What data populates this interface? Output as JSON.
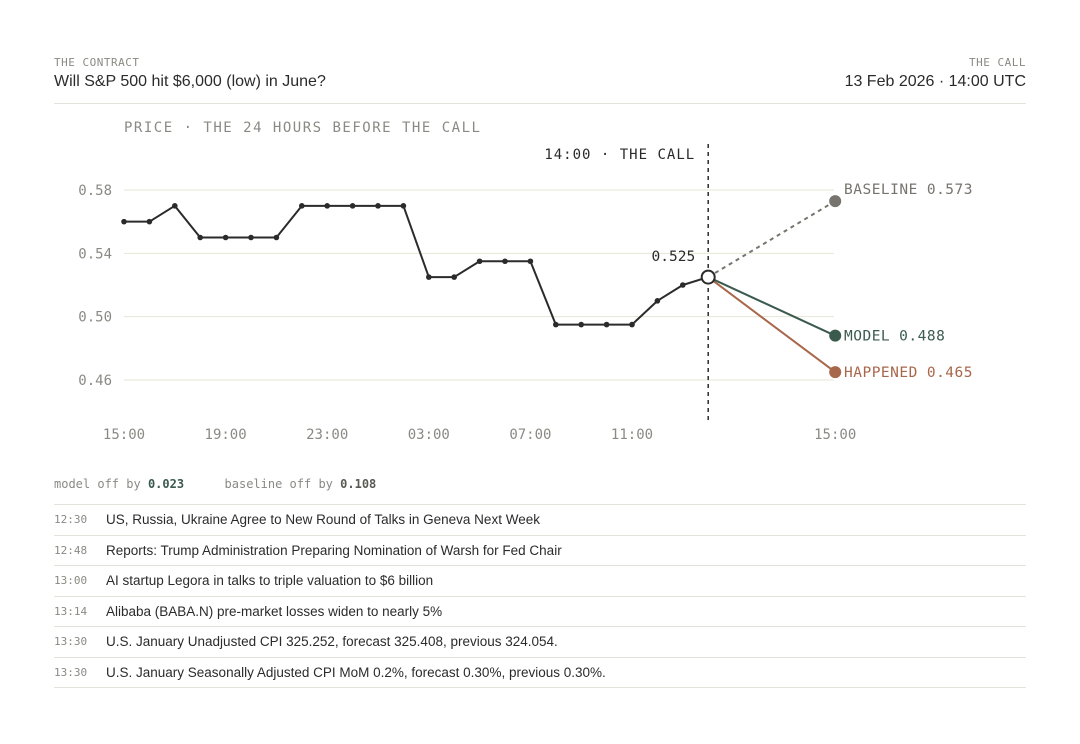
{
  "header": {
    "contract_label": "THE CONTRACT",
    "contract_title": "Will S&P 500 hit $6,000 (low) in June?",
    "call_label": "THE CALL",
    "call_time": "13 Feb 2026 · 14:00 UTC"
  },
  "chart_data": {
    "type": "line",
    "title": "PRICE · THE 24 HOURS BEFORE THE CALL",
    "x_tick_labels": [
      "15:00",
      "19:00",
      "23:00",
      "03:00",
      "07:00",
      "11:00",
      "15:00"
    ],
    "y_tick_labels": [
      "0.58",
      "0.54",
      "0.50",
      "0.46"
    ],
    "ylim": [
      0.44,
      0.59
    ],
    "grid": true,
    "call_marker": {
      "label": "14:00 · THE CALL",
      "value_label": "0.525",
      "value": 0.525
    },
    "series": [
      {
        "x": [
          "15:00",
          "16:00",
          "17:00",
          "18:00",
          "19:00",
          "20:00",
          "21:00",
          "22:00",
          "23:00",
          "00:00",
          "01:00",
          "02:00",
          "03:00",
          "04:00",
          "05:00",
          "06:00",
          "07:00",
          "08:00",
          "09:00",
          "10:00",
          "11:00",
          "12:00",
          "13:00",
          "14:00"
        ],
        "values": [
          0.56,
          0.56,
          0.57,
          0.55,
          0.55,
          0.55,
          0.55,
          0.57,
          0.57,
          0.57,
          0.57,
          0.57,
          0.525,
          0.525,
          0.535,
          0.535,
          0.535,
          0.495,
          0.495,
          0.495,
          0.495,
          0.51,
          0.52,
          0.525
        ],
        "color": "#2b2b2b"
      }
    ],
    "forecasts": [
      {
        "name": "BASELINE",
        "value": 0.573,
        "value_label": "0.573",
        "color": "#76746c",
        "dashed": true
      },
      {
        "name": "MODEL",
        "value": 0.488,
        "value_label": "0.488",
        "color": "#3b5a4e",
        "dashed": false
      },
      {
        "name": "HAPPENED",
        "value": 0.465,
        "value_label": "0.465",
        "color": "#a8664a",
        "dashed": false
      }
    ]
  },
  "errors": {
    "model_label": "model off by",
    "model_value": "0.023",
    "baseline_label": "baseline off by",
    "baseline_value": "0.108"
  },
  "news": [
    {
      "time": "12:30",
      "text": "US, Russia, Ukraine Agree to New Round of Talks in Geneva Next Week"
    },
    {
      "time": "12:48",
      "text": "Reports: Trump Administration Preparing Nomination of Warsh for Fed Chair"
    },
    {
      "time": "13:00",
      "text": "AI startup Legora in talks to triple valuation to $6 billion"
    },
    {
      "time": "13:14",
      "text": "Alibaba (BABA.N) pre-market losses widen to nearly 5%"
    },
    {
      "time": "13:30",
      "text": "U.S. January Unadjusted CPI 325.252, forecast 325.408, previous 324.054."
    },
    {
      "time": "13:30",
      "text": "U.S. January Seasonally Adjusted CPI MoM 0.2%, forecast 0.30%, previous 0.30%."
    }
  ]
}
